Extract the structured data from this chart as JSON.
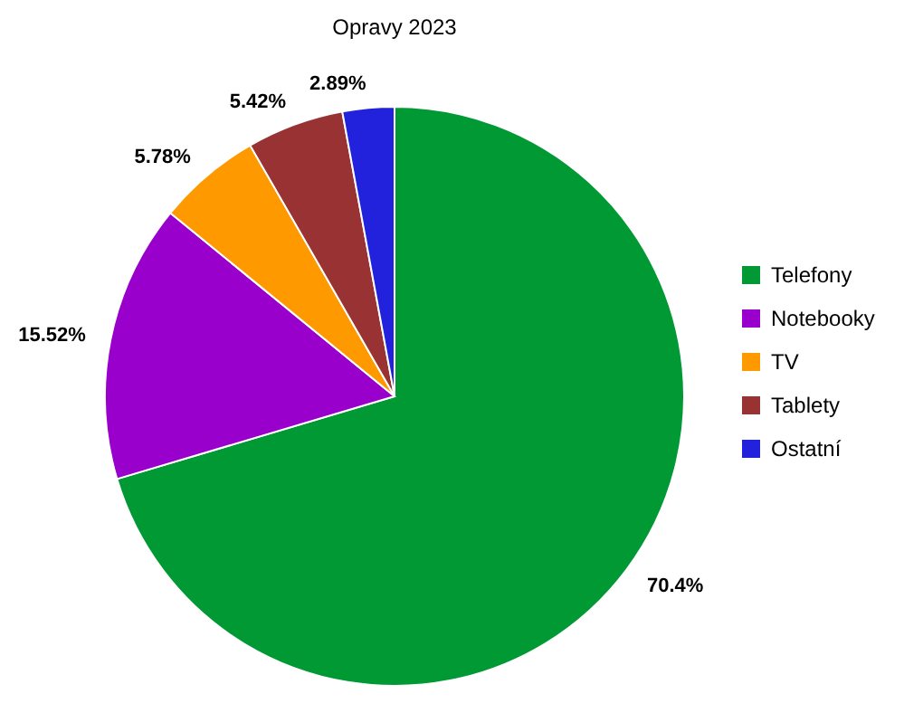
{
  "chart_data": {
    "type": "pie",
    "title": "Opravy 2023",
    "categories": [
      "Telefony",
      "Notebooky",
      "TV",
      "Tablety",
      "Ostatní"
    ],
    "values": [
      70.4,
      15.52,
      5.78,
      5.42,
      2.89
    ],
    "colors": [
      "#009933",
      "#9900cc",
      "#ff9900",
      "#993333",
      "#2222dd"
    ],
    "value_labels": [
      "70.4%",
      "15.52%",
      "5.78%",
      "5.42%",
      "2.89%"
    ],
    "legend": "right"
  }
}
